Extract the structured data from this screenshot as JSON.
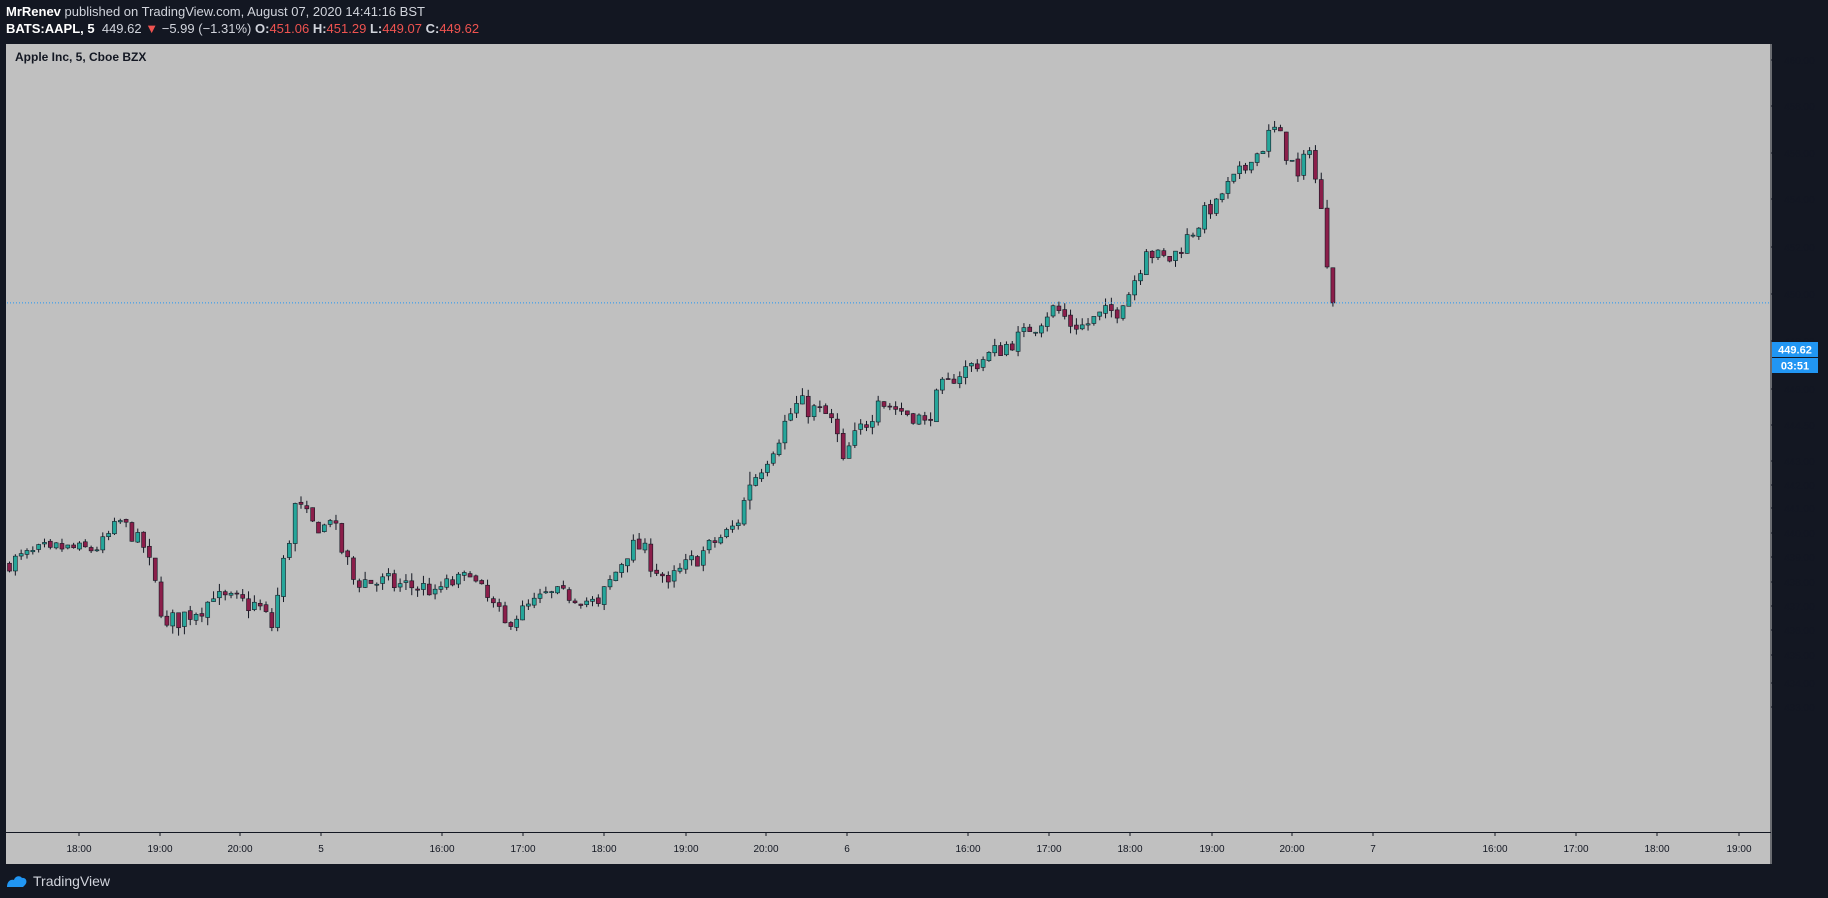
{
  "header": {
    "author": "MrRenev",
    "published_text": " published on TradingView.com, August 07, 2020 14:41:16 BST",
    "symbol": "BATS:AAPL, 5",
    "last": "449.62",
    "change_arrow": "▼",
    "change": "−5.99 (−1.31%)",
    "open_label": "O:",
    "open": "451.06",
    "high_label": "H:",
    "high": "451.29",
    "low_label": "L:",
    "low": "449.07",
    "close_label": "C:",
    "close": "449.62"
  },
  "chart_title": "Apple Inc, 5, Cboe BZX",
  "price_badge": "449.62",
  "countdown_badge": "03:51",
  "footer": {
    "brand": "TradingView",
    "icon": "tradingview-logo-icon"
  },
  "colors": {
    "up": "#26a69a",
    "down": "#8b1e4a",
    "wick": "#131722",
    "background": "#c0c0c0",
    "price_line": "#2196f3"
  },
  "chart_data": {
    "type": "candlestick",
    "title": "Apple Inc, 5, Cboe BZX",
    "ylim": [
      433,
      460.7
    ],
    "y_ticks": [
      "433.00",
      "434.00",
      "435.00",
      "436.00",
      "437.00",
      "438.00",
      "439.00",
      "440.00",
      "441.00",
      "442.00",
      "443.00",
      "444.50",
      "446.00",
      "448.00",
      "450.00",
      "452.00",
      "454.00",
      "456.00",
      "458.00",
      "460.00"
    ],
    "x_ticks": [
      "18:00",
      "19:00",
      "20:00",
      "5",
      "16:00",
      "17:00",
      "18:00",
      "19:00",
      "20:00",
      "6",
      "16:00",
      "17:00",
      "18:00",
      "19:00",
      "20:00",
      "7",
      "16:00",
      "17:00",
      "18:00",
      "19:00"
    ],
    "current_price": 449.62,
    "segments": [
      {
        "start": 438.7,
        "end": 439.4,
        "n": 8,
        "amp": 0.35
      },
      {
        "start": 439.4,
        "end": 439.3,
        "n": 8,
        "amp": 0.3
      },
      {
        "start": 439.3,
        "end": 440.5,
        "n": 4,
        "amp": 0.3
      },
      {
        "start": 440.5,
        "end": 439.4,
        "n": 4,
        "amp": 0.35
      },
      {
        "start": 439.4,
        "end": 436.2,
        "n": 4,
        "amp": 0.5
      },
      {
        "start": 436.2,
        "end": 437.3,
        "n": 8,
        "amp": 0.5
      },
      {
        "start": 437.3,
        "end": 437.0,
        "n": 8,
        "amp": 0.45
      },
      {
        "start": 437.0,
        "end": 436.1,
        "n": 2,
        "amp": 0.4
      },
      {
        "start": 436.1,
        "end": 441.2,
        "n": 4,
        "amp": 0.6
      },
      {
        "start": 441.2,
        "end": 440.0,
        "n": 4,
        "amp": 0.4
      },
      {
        "start": 440.0,
        "end": 440.5,
        "n": 2,
        "amp": 0.35
      },
      {
        "start": 440.5,
        "end": 438.1,
        "n": 4,
        "amp": 0.5
      },
      {
        "start": 438.1,
        "end": 437.7,
        "n": 14,
        "amp": 0.45
      },
      {
        "start": 437.7,
        "end": 438.2,
        "n": 6,
        "amp": 0.35
      },
      {
        "start": 438.2,
        "end": 436.3,
        "n": 6,
        "amp": 0.4
      },
      {
        "start": 436.3,
        "end": 437.6,
        "n": 8,
        "amp": 0.35
      },
      {
        "start": 437.6,
        "end": 437.1,
        "n": 8,
        "amp": 0.3
      },
      {
        "start": 437.1,
        "end": 439.7,
        "n": 6,
        "amp": 0.45
      },
      {
        "start": 439.7,
        "end": 438.0,
        "n": 6,
        "amp": 0.45
      },
      {
        "start": 438.0,
        "end": 439.6,
        "n": 8,
        "amp": 0.4
      },
      {
        "start": 439.6,
        "end": 440.4,
        "n": 4,
        "amp": 0.35
      },
      {
        "start": 440.4,
        "end": 442.0,
        "n": 2,
        "amp": 0.9
      },
      {
        "start": 442.0,
        "end": 445.4,
        "n": 8,
        "amp": 0.5
      },
      {
        "start": 445.4,
        "end": 444.8,
        "n": 6,
        "amp": 0.45
      },
      {
        "start": 444.8,
        "end": 443.1,
        "n": 2,
        "amp": 0.5
      },
      {
        "start": 443.1,
        "end": 445.5,
        "n": 6,
        "amp": 0.5
      },
      {
        "start": 445.5,
        "end": 444.7,
        "n": 8,
        "amp": 0.35
      },
      {
        "start": 444.7,
        "end": 446.4,
        "n": 4,
        "amp": 0.45
      },
      {
        "start": 446.4,
        "end": 448.4,
        "n": 14,
        "amp": 0.4
      },
      {
        "start": 448.4,
        "end": 449.5,
        "n": 4,
        "amp": 0.4
      },
      {
        "start": 449.5,
        "end": 448.5,
        "n": 4,
        "amp": 0.45
      },
      {
        "start": 448.5,
        "end": 449.5,
        "n": 8,
        "amp": 0.45
      },
      {
        "start": 449.5,
        "end": 451.8,
        "n": 4,
        "amp": 0.4
      },
      {
        "start": 451.8,
        "end": 451.4,
        "n": 4,
        "amp": 0.35
      },
      {
        "start": 451.4,
        "end": 454.0,
        "n": 8,
        "amp": 0.4
      },
      {
        "start": 454.0,
        "end": 455.6,
        "n": 6,
        "amp": 0.4
      },
      {
        "start": 455.6,
        "end": 457.1,
        "n": 4,
        "amp": 0.45
      },
      {
        "start": 457.1,
        "end": 455.0,
        "n": 4,
        "amp": 0.45
      },
      {
        "start": 455.0,
        "end": 456.1,
        "n": 2,
        "amp": 0.45
      },
      {
        "start": 456.1,
        "end": 453.6,
        "n": 2,
        "amp": 0.5
      },
      {
        "start": 453.6,
        "end": 449.62,
        "n": 2,
        "amp": 0.5
      }
    ]
  }
}
